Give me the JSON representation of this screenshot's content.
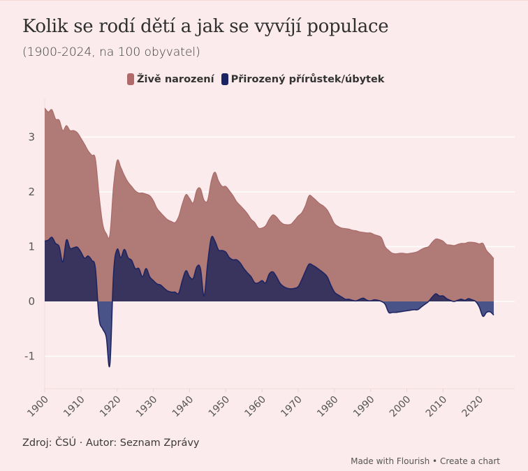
{
  "title": "Kolik se rodí dětí a jak se vyvíjí populace",
  "subtitle": "(1900-2024, na 100 obyvatel)",
  "legend": [
    {
      "label": "Živě narození",
      "color": "#b06a6a"
    },
    {
      "label": "Přirozený přírůstek/úbytek",
      "color": "#1b2463"
    }
  ],
  "colors": {
    "background": "#fcebec",
    "births_fill": "#b07b77",
    "births_line": "#a96a68",
    "natural_pos_fill": "#38345e",
    "natural_neg_fill": "#4a5387",
    "natural_line": "#1e2462",
    "grid": "#ffffff"
  },
  "source": "Zdroj: ČSÚ · Autor: Seznam Zprávy",
  "footer": {
    "made_with": "Made with Flourish",
    "separator": "•",
    "create": "Create a chart"
  },
  "chart_data": {
    "type": "area",
    "title": "Kolik se rodí dětí a jak se vyvíjí populace",
    "subtitle": "(1900-2024, na 100 obyvatel)",
    "xlabel": "",
    "ylabel": "",
    "xlim": [
      1900,
      2024
    ],
    "ylim": [
      -1.6,
      3.6
    ],
    "yticks": [
      -1,
      0,
      1,
      2,
      3
    ],
    "xticks": [
      1900,
      1910,
      1920,
      1930,
      1940,
      1950,
      1960,
      1970,
      1980,
      1990,
      2000,
      2010,
      2020
    ],
    "grid": true,
    "legend_position": "top-center",
    "series": [
      {
        "name": "Živě narození",
        "x": [
          1900,
          1901,
          1902,
          1903,
          1904,
          1905,
          1906,
          1907,
          1908,
          1909,
          1910,
          1911,
          1912,
          1913,
          1914,
          1915,
          1916,
          1917,
          1918,
          1919,
          1920,
          1921,
          1922,
          1923,
          1924,
          1925,
          1926,
          1927,
          1928,
          1929,
          1930,
          1931,
          1932,
          1933,
          1934,
          1935,
          1936,
          1937,
          1938,
          1939,
          1940,
          1941,
          1942,
          1943,
          1944,
          1945,
          1946,
          1947,
          1948,
          1949,
          1950,
          1951,
          1952,
          1953,
          1954,
          1955,
          1956,
          1957,
          1958,
          1959,
          1960,
          1961,
          1962,
          1963,
          1964,
          1965,
          1966,
          1967,
          1968,
          1969,
          1970,
          1971,
          1972,
          1973,
          1974,
          1975,
          1976,
          1977,
          1978,
          1979,
          1980,
          1981,
          1982,
          1983,
          1984,
          1985,
          1986,
          1987,
          1988,
          1989,
          1990,
          1991,
          1992,
          1993,
          1994,
          1995,
          1996,
          1997,
          1998,
          1999,
          2000,
          2001,
          2002,
          2003,
          2004,
          2005,
          2006,
          2007,
          2008,
          2009,
          2010,
          2011,
          2012,
          2013,
          2014,
          2015,
          2016,
          2017,
          2018,
          2019,
          2020,
          2021,
          2022,
          2023,
          2024
        ],
        "values": [
          3.53,
          3.46,
          3.5,
          3.33,
          3.31,
          3.12,
          3.21,
          3.12,
          3.12,
          3.08,
          2.98,
          2.87,
          2.75,
          2.67,
          2.6,
          1.95,
          1.42,
          1.24,
          1.22,
          2.1,
          2.57,
          2.45,
          2.3,
          2.18,
          2.1,
          2.02,
          1.98,
          1.98,
          1.96,
          1.93,
          1.84,
          1.7,
          1.62,
          1.55,
          1.49,
          1.46,
          1.44,
          1.55,
          1.78,
          1.95,
          1.88,
          1.8,
          2.03,
          2.06,
          1.85,
          1.85,
          2.2,
          2.36,
          2.2,
          2.1,
          2.1,
          2.02,
          1.93,
          1.82,
          1.75,
          1.68,
          1.6,
          1.5,
          1.44,
          1.34,
          1.34,
          1.38,
          1.5,
          1.58,
          1.54,
          1.46,
          1.41,
          1.4,
          1.41,
          1.48,
          1.56,
          1.62,
          1.75,
          1.93,
          1.9,
          1.84,
          1.78,
          1.74,
          1.67,
          1.55,
          1.42,
          1.37,
          1.34,
          1.33,
          1.32,
          1.3,
          1.29,
          1.27,
          1.26,
          1.25,
          1.25,
          1.22,
          1.2,
          1.16,
          1.0,
          0.93,
          0.88,
          0.87,
          0.88,
          0.88,
          0.87,
          0.88,
          0.89,
          0.91,
          0.95,
          0.98,
          1.0,
          1.08,
          1.14,
          1.13,
          1.1,
          1.04,
          1.03,
          1.02,
          1.04,
          1.06,
          1.06,
          1.08,
          1.08,
          1.07,
          1.05,
          1.06,
          0.93,
          0.86,
          0.78
        ]
      },
      {
        "name": "Přirozený přírůstek/úbytek",
        "x": [
          1900,
          1901,
          1902,
          1903,
          1904,
          1905,
          1906,
          1907,
          1908,
          1909,
          1910,
          1911,
          1912,
          1913,
          1914,
          1915,
          1916,
          1917,
          1918,
          1919,
          1920,
          1921,
          1922,
          1923,
          1924,
          1925,
          1926,
          1927,
          1928,
          1929,
          1930,
          1931,
          1932,
          1933,
          1934,
          1935,
          1936,
          1937,
          1938,
          1939,
          1940,
          1941,
          1942,
          1943,
          1944,
          1945,
          1946,
          1947,
          1948,
          1949,
          1950,
          1951,
          1952,
          1953,
          1954,
          1955,
          1956,
          1957,
          1958,
          1959,
          1960,
          1961,
          1962,
          1963,
          1964,
          1965,
          1966,
          1967,
          1968,
          1969,
          1970,
          1971,
          1972,
          1973,
          1974,
          1975,
          1976,
          1977,
          1978,
          1979,
          1980,
          1981,
          1982,
          1983,
          1984,
          1985,
          1986,
          1987,
          1988,
          1989,
          1990,
          1991,
          1992,
          1993,
          1994,
          1995,
          1996,
          1997,
          1998,
          1999,
          2000,
          2001,
          2002,
          2003,
          2004,
          2005,
          2006,
          2007,
          2008,
          2009,
          2010,
          2011,
          2012,
          2013,
          2014,
          2015,
          2016,
          2017,
          2018,
          2019,
          2020,
          2021,
          2022,
          2023,
          2024
        ],
        "values": [
          1.1,
          1.12,
          1.17,
          1.06,
          1.0,
          0.72,
          1.12,
          0.97,
          0.98,
          0.99,
          0.9,
          0.79,
          0.83,
          0.75,
          0.6,
          -0.3,
          -0.5,
          -0.65,
          -1.15,
          0.5,
          0.95,
          0.8,
          0.95,
          0.8,
          0.75,
          0.6,
          0.6,
          0.45,
          0.6,
          0.45,
          0.38,
          0.32,
          0.3,
          0.24,
          0.19,
          0.17,
          0.17,
          0.15,
          0.38,
          0.56,
          0.45,
          0.42,
          0.63,
          0.6,
          0.1,
          0.7,
          1.16,
          1.1,
          0.94,
          0.93,
          0.9,
          0.8,
          0.76,
          0.76,
          0.7,
          0.6,
          0.52,
          0.45,
          0.34,
          0.34,
          0.38,
          0.34,
          0.5,
          0.54,
          0.45,
          0.33,
          0.27,
          0.24,
          0.23,
          0.24,
          0.27,
          0.4,
          0.55,
          0.68,
          0.66,
          0.62,
          0.57,
          0.52,
          0.45,
          0.3,
          0.17,
          0.12,
          0.08,
          0.04,
          0.04,
          0.02,
          0.01,
          0.04,
          0.06,
          0.02,
          0.01,
          0.03,
          0.02,
          0.0,
          -0.05,
          -0.2,
          -0.2,
          -0.2,
          -0.19,
          -0.18,
          -0.17,
          -0.16,
          -0.15,
          -0.15,
          -0.1,
          -0.05,
          0.0,
          0.08,
          0.14,
          0.1,
          0.1,
          0.05,
          0.02,
          0.0,
          0.02,
          0.04,
          0.02,
          0.05,
          0.03,
          0.0,
          -0.1,
          -0.27,
          -0.2,
          -0.19,
          -0.25
        ]
      }
    ]
  }
}
